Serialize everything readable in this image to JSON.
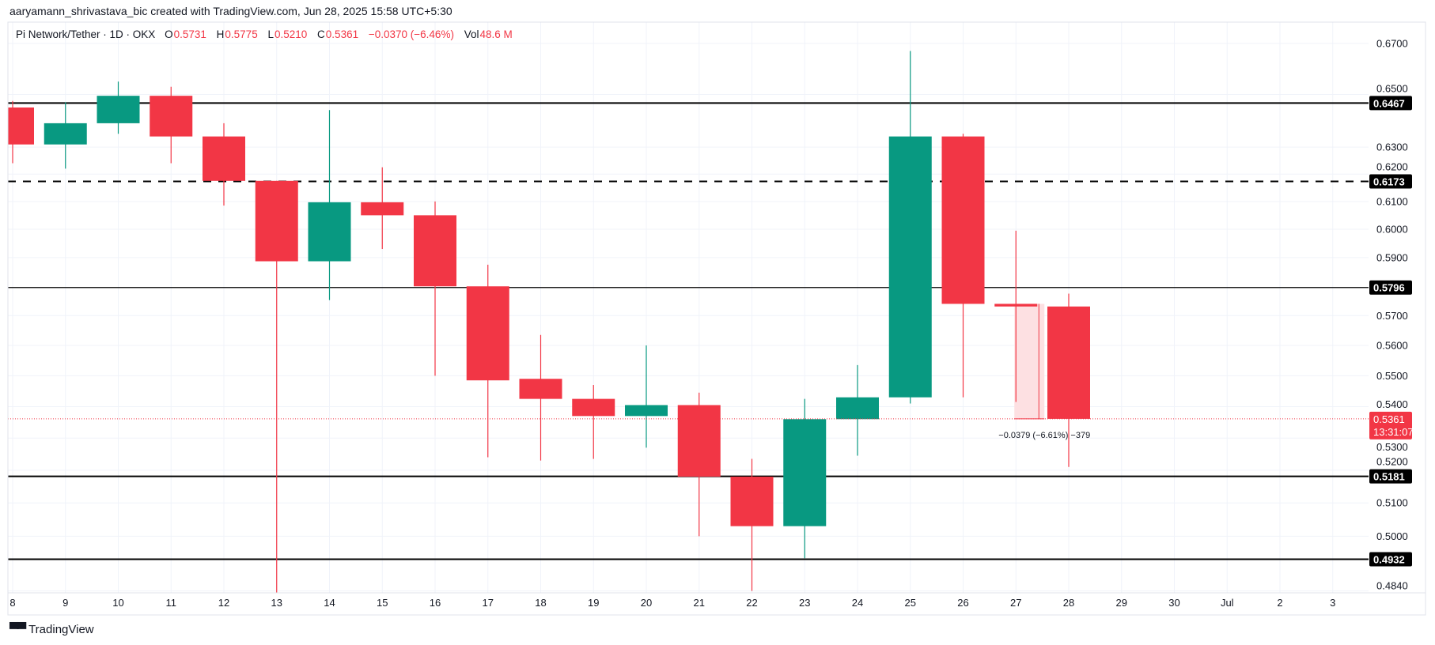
{
  "credit": "aaryamann_shrivastava_bic created with TradingView.com, Jun 28, 2025 15:58 UTC+5:30",
  "legend": {
    "symbol": "Pi Network/Tether · 1D · OKX",
    "o_label": "O",
    "o": "0.5731",
    "h_label": "H",
    "h": "0.5775",
    "l_label": "L",
    "l": "0.5210",
    "c_label": "C",
    "c": "0.5361",
    "change": "−0.0370 (−6.46%)",
    "vol_label": "Vol",
    "vol": "48.6 M"
  },
  "logo": {
    "mark": "TV",
    "text": "TradingView"
  },
  "colors": {
    "up": "#089981",
    "down": "#f23645",
    "grid": "#f0f3fa",
    "level": "#000000",
    "measure_fill": "#fde0e2"
  },
  "chart_data": {
    "type": "candlestick",
    "scale": "log",
    "grid": true,
    "ylim": [
      0.48,
      0.67
    ],
    "x_tick_labels": [
      "8",
      "9",
      "10",
      "11",
      "12",
      "13",
      "14",
      "15",
      "16",
      "17",
      "18",
      "19",
      "20",
      "21",
      "22",
      "23",
      "24",
      "25",
      "26",
      "27",
      "28",
      "29",
      "30",
      "Jul",
      "2",
      "3"
    ],
    "y_ticks": [
      "0.6700",
      "0.6500",
      "0.6300",
      "0.6200",
      "0.6100",
      "0.6000",
      "0.5900",
      "0.5700",
      "0.5600",
      "0.5500",
      "0.5400",
      "0.5300",
      "0.5200",
      "0.5100",
      "0.5000",
      "0.4840"
    ],
    "candles": [
      {
        "date": "8",
        "o": 0.645,
        "h": 0.6475,
        "l": 0.624,
        "c": 0.631
      },
      {
        "date": "9",
        "o": 0.631,
        "h": 0.647,
        "l": 0.622,
        "c": 0.639
      },
      {
        "date": "10",
        "o": 0.639,
        "h": 0.655,
        "l": 0.635,
        "c": 0.6495
      },
      {
        "date": "11",
        "o": 0.6495,
        "h": 0.653,
        "l": 0.624,
        "c": 0.634
      },
      {
        "date": "12",
        "o": 0.634,
        "h": 0.639,
        "l": 0.6085,
        "c": 0.6175
      },
      {
        "date": "13",
        "o": 0.6175,
        "h": 0.6175,
        "l": 0.48,
        "c": 0.5887
      },
      {
        "date": "14",
        "o": 0.5887,
        "h": 0.644,
        "l": 0.5753,
        "c": 0.6097
      },
      {
        "date": "15",
        "o": 0.6097,
        "h": 0.6225,
        "l": 0.593,
        "c": 0.605
      },
      {
        "date": "16",
        "o": 0.605,
        "h": 0.61,
        "l": 0.55,
        "c": 0.58
      },
      {
        "date": "17",
        "o": 0.58,
        "h": 0.5875,
        "l": 0.524,
        "c": 0.5485
      },
      {
        "date": "18",
        "o": 0.549,
        "h": 0.5635,
        "l": 0.523,
        "c": 0.5425
      },
      {
        "date": "19",
        "o": 0.5425,
        "h": 0.547,
        "l": 0.5235,
        "c": 0.537
      },
      {
        "date": "20",
        "o": 0.537,
        "h": 0.56,
        "l": 0.527,
        "c": 0.5405
      },
      {
        "date": "21",
        "o": 0.5405,
        "h": 0.5445,
        "l": 0.5,
        "c": 0.518
      },
      {
        "date": "22",
        "o": 0.518,
        "h": 0.5235,
        "l": 0.484,
        "c": 0.503
      },
      {
        "date": "23",
        "o": 0.503,
        "h": 0.5425,
        "l": 0.4935,
        "c": 0.536
      },
      {
        "date": "24",
        "o": 0.536,
        "h": 0.5535,
        "l": 0.5245,
        "c": 0.543
      },
      {
        "date": "25",
        "o": 0.543,
        "h": 0.667,
        "l": 0.541,
        "c": 0.634
      },
      {
        "date": "26",
        "o": 0.634,
        "h": 0.635,
        "l": 0.543,
        "c": 0.574
      },
      {
        "date": "27",
        "o": 0.574,
        "h": 0.5995,
        "l": 0.5415,
        "c": 0.5731
      },
      {
        "date": "28",
        "o": 0.5731,
        "h": 0.5775,
        "l": 0.521,
        "c": 0.5361
      }
    ],
    "levels": [
      {
        "price": "0.6467",
        "style": "solid-thick"
      },
      {
        "price": "0.6173",
        "style": "dashed"
      },
      {
        "price": "0.5796",
        "style": "solid-thin"
      },
      {
        "price": "0.5181",
        "style": "solid-thick"
      },
      {
        "price": "0.4932",
        "style": "solid-thick"
      }
    ],
    "last_price": {
      "price": "0.5361",
      "countdown": "13:31:07"
    },
    "measure": {
      "from": 0.574,
      "to": 0.5361,
      "label": "−0.0379 (−6.61%) −379"
    }
  }
}
